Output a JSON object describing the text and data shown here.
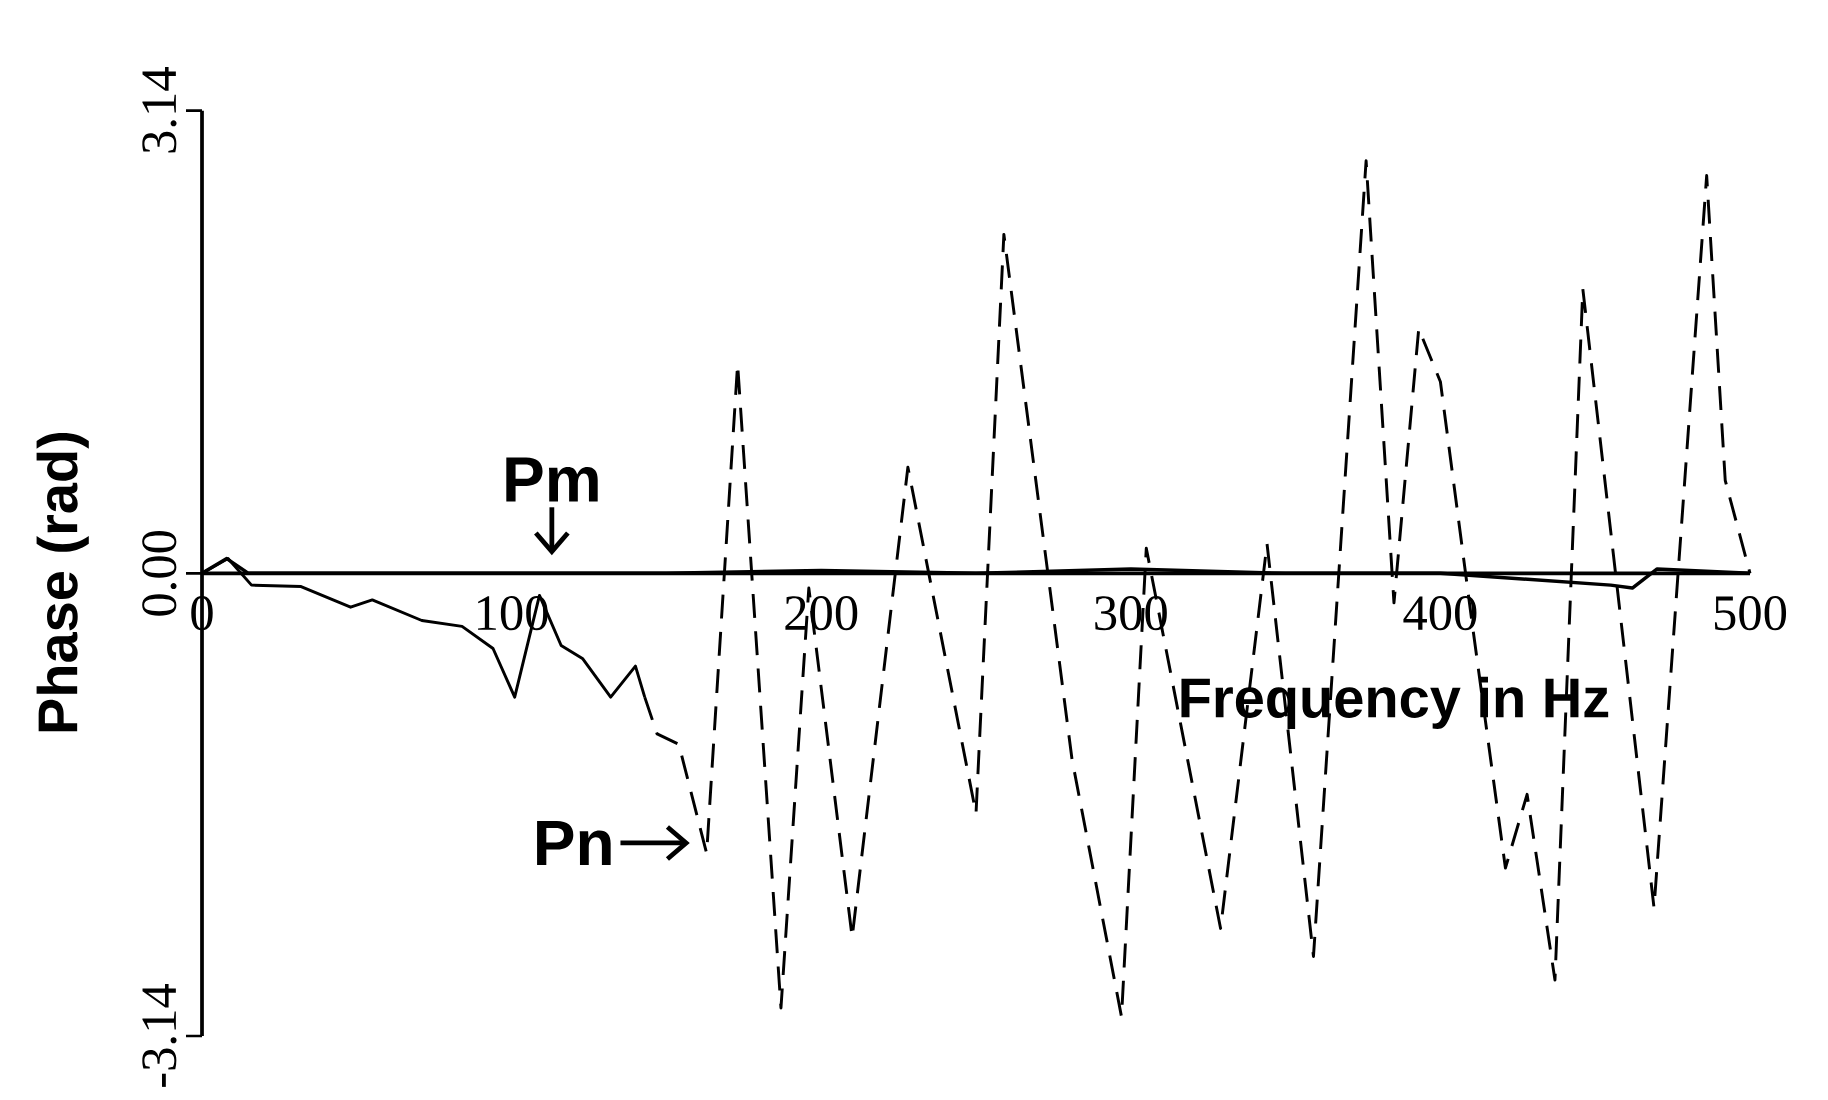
{
  "chart_data": {
    "type": "line",
    "xlabel": "Frequency in Hz",
    "ylabel": "Phase (rad)",
    "xlim": [
      0,
      500
    ],
    "ylim": [
      -3.14,
      3.14
    ],
    "xticks": [
      0,
      100,
      200,
      300,
      400,
      500
    ],
    "yticks": [
      {
        "value": -3.14,
        "label": "-3.14"
      },
      {
        "value": 0,
        "label": "0.00"
      },
      {
        "value": 3.14,
        "label": "3.14"
      }
    ],
    "grid": false,
    "marker": "none",
    "series": [
      {
        "color": "#000000",
        "line_style": "solid",
        "x": [
          0,
          8,
          15,
          50,
          100,
          150,
          200,
          250,
          300,
          350,
          400,
          455,
          462,
          470,
          500
        ],
        "values": [
          0,
          0.1,
          0,
          0,
          0,
          0,
          0.02,
          0,
          0.03,
          0,
          0,
          -0.08,
          -0.1,
          0.03,
          0
        ]
      },
      {
        "color": "#000000",
        "line_style": "solid",
        "x": [
          0,
          8.4,
          16,
          32,
          48,
          55,
          71,
          84,
          94,
          101,
          109,
          116,
          123,
          132,
          140,
          143
        ],
        "values": [
          0,
          0.1,
          -0.08,
          -0.09,
          -0.23,
          -0.18,
          -0.32,
          -0.36,
          -0.51,
          -0.84,
          -0.15,
          -0.49,
          -0.58,
          -0.84,
          -0.63,
          -0.84
        ]
      },
      {
        "color": "#000000",
        "line_style": "dashed",
        "x": [
          143,
          147,
          154,
          163,
          173,
          187,
          196,
          210,
          228,
          250,
          259,
          281,
          297,
          305,
          329,
          344,
          359,
          376,
          385,
          393,
          400,
          410,
          421,
          428,
          437,
          446,
          469,
          486,
          492,
          500
        ],
        "values": [
          -0.84,
          -1.09,
          -1.16,
          -1.9,
          1.42,
          -2.95,
          -0.1,
          -2.47,
          0.72,
          -1.63,
          2.3,
          -1.26,
          -3.01,
          0.17,
          -2.41,
          0.2,
          -2.6,
          2.8,
          -0.2,
          1.66,
          1.3,
          -0.3,
          -2.0,
          -1.5,
          -2.76,
          1.93,
          -2.27,
          2.7,
          0.63,
          0
        ]
      }
    ],
    "annotations": [
      {
        "text": "Pm",
        "x": 113,
        "y": 0.05
      },
      {
        "text": "Pn",
        "x": 161,
        "y": -1.83
      }
    ]
  }
}
